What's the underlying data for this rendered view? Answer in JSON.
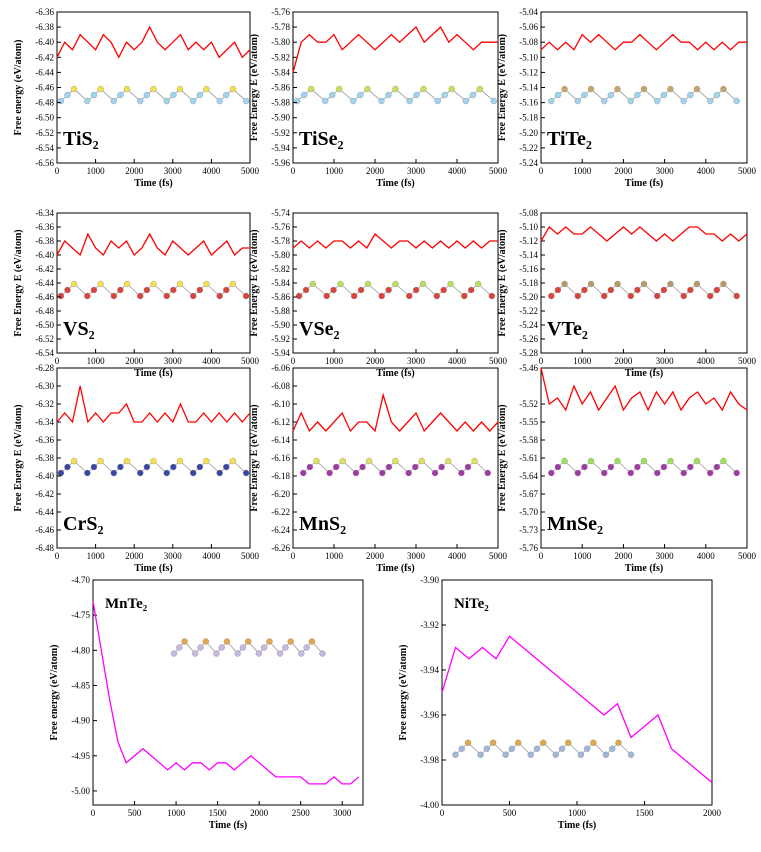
{
  "chart_data": [
    {
      "type": "line",
      "title": "TiS₂",
      "ylabel": "Free energy (eV/atom)",
      "xlabel": "Time (fs)",
      "x": [
        0,
        200,
        400,
        600,
        800,
        1000,
        1200,
        1400,
        1600,
        1800,
        2000,
        2200,
        2400,
        2600,
        2800,
        3000,
        3200,
        3400,
        3600,
        3800,
        4000,
        4200,
        4400,
        4600,
        4800,
        5000
      ],
      "series": [
        {
          "color": "#ff0000",
          "values": [
            -6.42,
            -6.4,
            -6.41,
            -6.39,
            -6.4,
            -6.41,
            -6.39,
            -6.4,
            -6.42,
            -6.4,
            -6.41,
            -6.4,
            -6.38,
            -6.4,
            -6.41,
            -6.4,
            -6.39,
            -6.41,
            -6.4,
            -6.41,
            -6.4,
            -6.42,
            -6.41,
            -6.4,
            -6.42,
            -6.41
          ]
        }
      ],
      "xlim": [
        0,
        5000
      ],
      "xticks": [
        0,
        1000,
        2000,
        3000,
        4000,
        5000
      ],
      "ylim": [
        -6.56,
        -6.36
      ],
      "yticks": [
        -6.36,
        -6.38,
        {
          "value": -6.4,
          "label": "-6.40"
        },
        -6.42,
        -6.44,
        -6.46,
        -6.48,
        {
          "value": -6.5,
          "label": "-6.50"
        },
        -6.52,
        -6.54,
        -6.56
      ]
    },
    {
      "type": "line",
      "title": "TiSe₂",
      "ylabel": "Free Energy E (eV/atom)",
      "xlabel": "Time (fs)",
      "x": [
        0,
        200,
        400,
        600,
        800,
        1000,
        1200,
        1400,
        1600,
        1800,
        2000,
        2200,
        2400,
        2600,
        2800,
        3000,
        3200,
        3400,
        3600,
        3800,
        4000,
        4200,
        4400,
        4600,
        4800,
        5000
      ],
      "series": [
        {
          "color": "#ff0000",
          "values": [
            -5.84,
            -5.8,
            -5.79,
            -5.8,
            -5.8,
            -5.79,
            -5.81,
            -5.8,
            -5.79,
            -5.8,
            -5.81,
            -5.8,
            -5.79,
            -5.8,
            -5.79,
            -5.78,
            -5.8,
            -5.79,
            -5.78,
            -5.8,
            -5.79,
            -5.8,
            -5.81,
            -5.8,
            -5.8,
            -5.8
          ]
        }
      ],
      "xlim": [
        0,
        5000
      ],
      "xticks": [
        0,
        1000,
        2000,
        3000,
        4000,
        5000
      ],
      "ylim": [
        -5.96,
        -5.76
      ],
      "yticks": [
        -5.76,
        -5.78,
        {
          "value": -5.8,
          "label": "-5.80"
        },
        -5.82,
        -5.84,
        -5.86,
        -5.88,
        {
          "value": -5.9,
          "label": "-5.90"
        },
        -5.92,
        -5.94,
        -5.96
      ]
    },
    {
      "type": "line",
      "title": "TiTe₂",
      "ylabel": "Free Energy E (eV/atom)",
      "xlabel": "Time (fs)",
      "x": [
        0,
        200,
        400,
        600,
        800,
        1000,
        1200,
        1400,
        1600,
        1800,
        2000,
        2200,
        2400,
        2600,
        2800,
        3000,
        3200,
        3400,
        3600,
        3800,
        4000,
        4200,
        4400,
        4600,
        4800,
        5000
      ],
      "series": [
        {
          "color": "#ff0000",
          "values": [
            -5.09,
            -5.08,
            -5.09,
            -5.08,
            -5.09,
            -5.07,
            -5.08,
            -5.07,
            -5.08,
            -5.09,
            -5.08,
            -5.08,
            -5.07,
            -5.08,
            -5.09,
            -5.08,
            -5.07,
            -5.08,
            -5.08,
            -5.09,
            -5.08,
            -5.09,
            -5.08,
            -5.09,
            -5.08,
            -5.08
          ]
        }
      ],
      "xlim": [
        0,
        5000
      ],
      "xticks": [
        0,
        1000,
        2000,
        3000,
        4000,
        5000
      ],
      "ylim": [
        -5.24,
        -5.04
      ],
      "yticks": [
        -5.04,
        -5.06,
        -5.08,
        {
          "value": -5.1,
          "label": "-5.10"
        },
        -5.12,
        -5.14,
        -5.16,
        -5.18,
        {
          "value": -5.2,
          "label": "-5.20"
        },
        -5.22,
        -5.24
      ]
    },
    {
      "type": "line",
      "title": "VS₂",
      "ylabel": "Free Energy E (eV/atom)",
      "xlabel": "Time (fs)",
      "x": [
        0,
        200,
        400,
        600,
        800,
        1000,
        1200,
        1400,
        1600,
        1800,
        2000,
        2200,
        2400,
        2600,
        2800,
        3000,
        3200,
        3400,
        3600,
        3800,
        4000,
        4200,
        4400,
        4600,
        4800,
        5000
      ],
      "series": [
        {
          "color": "#ff0000",
          "values": [
            -6.4,
            -6.38,
            -6.39,
            -6.4,
            -6.37,
            -6.39,
            -6.4,
            -6.38,
            -6.39,
            -6.38,
            -6.4,
            -6.39,
            -6.37,
            -6.39,
            -6.4,
            -6.38,
            -6.39,
            -6.4,
            -6.39,
            -6.38,
            -6.4,
            -6.39,
            -6.38,
            -6.4,
            -6.39,
            -6.39
          ]
        }
      ],
      "xlim": [
        0,
        5000
      ],
      "xticks": [
        0,
        1000,
        2000,
        3000,
        4000,
        5000
      ],
      "ylim": [
        -6.54,
        -6.34
      ],
      "yticks": [
        -6.34,
        -6.36,
        -6.38,
        {
          "value": -6.4,
          "label": "-6.40"
        },
        -6.42,
        -6.44,
        -6.46,
        -6.48,
        {
          "value": -6.5,
          "label": "-6.50"
        },
        -6.52,
        -6.54
      ]
    },
    {
      "type": "line",
      "title": "VSe₂",
      "ylabel": "Free Energy E (eV/atom)",
      "xlabel": "Time (fs)",
      "x": [
        0,
        200,
        400,
        600,
        800,
        1000,
        1200,
        1400,
        1600,
        1800,
        2000,
        2200,
        2400,
        2600,
        2800,
        3000,
        3200,
        3400,
        3600,
        3800,
        4000,
        4200,
        4400,
        4600,
        4800,
        5000
      ],
      "series": [
        {
          "color": "#ff0000",
          "values": [
            -5.79,
            -5.78,
            -5.79,
            -5.78,
            -5.79,
            -5.78,
            -5.78,
            -5.79,
            -5.78,
            -5.79,
            -5.77,
            -5.78,
            -5.79,
            -5.78,
            -5.78,
            -5.79,
            -5.78,
            -5.79,
            -5.78,
            -5.79,
            -5.78,
            -5.79,
            -5.78,
            -5.79,
            -5.78,
            -5.78
          ]
        }
      ],
      "xlim": [
        0,
        5000
      ],
      "xticks": [
        0,
        1000,
        2000,
        3000,
        4000,
        5000
      ],
      "ylim": [
        -5.94,
        -5.74
      ],
      "yticks": [
        -5.74,
        -5.76,
        -5.78,
        {
          "value": -5.8,
          "label": "-5.80"
        },
        -5.82,
        -5.84,
        -5.86,
        -5.88,
        {
          "value": -5.9,
          "label": "-5.90"
        },
        -5.92,
        -5.94
      ]
    },
    {
      "type": "line",
      "title": "VTe₂",
      "ylabel": "Free Energy E (eV/atom)",
      "xlabel": "Time (fs)",
      "x": [
        0,
        200,
        400,
        600,
        800,
        1000,
        1200,
        1400,
        1600,
        1800,
        2000,
        2200,
        2400,
        2600,
        2800,
        3000,
        3200,
        3400,
        3600,
        3800,
        4000,
        4200,
        4400,
        4600,
        4800,
        5000
      ],
      "series": [
        {
          "color": "#ff0000",
          "values": [
            -5.12,
            -5.1,
            -5.11,
            -5.1,
            -5.11,
            -5.11,
            -5.1,
            -5.11,
            -5.12,
            -5.11,
            -5.1,
            -5.11,
            -5.1,
            -5.11,
            -5.12,
            -5.11,
            -5.12,
            -5.11,
            -5.1,
            -5.1,
            -5.11,
            -5.11,
            -5.12,
            -5.11,
            -5.12,
            -5.11
          ]
        }
      ],
      "xlim": [
        0,
        5000
      ],
      "xticks": [
        0,
        1000,
        2000,
        3000,
        4000,
        5000
      ],
      "ylim": [
        -5.28,
        -5.08
      ],
      "yticks": [
        -5.08,
        {
          "value": -5.1,
          "label": "-5.10"
        },
        -5.12,
        -5.14,
        -5.16,
        -5.18,
        {
          "value": -5.2,
          "label": "-5.20"
        },
        -5.22,
        -5.24,
        -5.26,
        -5.28
      ]
    },
    {
      "type": "line",
      "title": "CrS₂",
      "ylabel": "Free Energy E (eV/atom)",
      "xlabel": "Time (fs)",
      "x": [
        0,
        200,
        400,
        600,
        800,
        1000,
        1200,
        1400,
        1600,
        1800,
        2000,
        2200,
        2400,
        2600,
        2800,
        3000,
        3200,
        3400,
        3600,
        3800,
        4000,
        4200,
        4400,
        4600,
        4800,
        5000
      ],
      "series": [
        {
          "color": "#ff0000",
          "values": [
            -6.34,
            -6.33,
            -6.34,
            -6.3,
            -6.34,
            -6.33,
            -6.34,
            -6.33,
            -6.33,
            -6.32,
            -6.34,
            -6.34,
            -6.33,
            -6.34,
            -6.33,
            -6.34,
            -6.32,
            -6.34,
            -6.34,
            -6.33,
            -6.34,
            -6.33,
            -6.34,
            -6.33,
            -6.34,
            -6.33
          ]
        }
      ],
      "xlim": [
        0,
        5000
      ],
      "xticks": [
        0,
        1000,
        2000,
        3000,
        4000,
        5000
      ],
      "ylim": [
        -6.48,
        -6.28
      ],
      "yticks": [
        -6.28,
        {
          "value": -6.3,
          "label": "-6.30"
        },
        -6.32,
        -6.34,
        -6.36,
        -6.38,
        {
          "value": -6.4,
          "label": "-6.40"
        },
        -6.42,
        -6.44,
        -6.46,
        -6.48
      ]
    },
    {
      "type": "line",
      "title": "MnS₂",
      "ylabel": "Free Energy E (eV/atom)",
      "xlabel": "Time (fs)",
      "x": [
        0,
        200,
        400,
        600,
        800,
        1000,
        1200,
        1400,
        1600,
        1800,
        2000,
        2200,
        2400,
        2600,
        2800,
        3000,
        3200,
        3400,
        3600,
        3800,
        4000,
        4200,
        4400,
        4600,
        4800,
        5000
      ],
      "series": [
        {
          "color": "#ff0000",
          "values": [
            -6.13,
            -6.11,
            -6.13,
            -6.12,
            -6.13,
            -6.12,
            -6.11,
            -6.13,
            -6.12,
            -6.12,
            -6.13,
            -6.09,
            -6.12,
            -6.13,
            -6.12,
            -6.11,
            -6.13,
            -6.12,
            -6.11,
            -6.12,
            -6.13,
            -6.12,
            -6.13,
            -6.12,
            -6.13,
            -6.12
          ]
        }
      ],
      "xlim": [
        0,
        5000
      ],
      "xticks": [
        0,
        1000,
        2000,
        3000,
        4000,
        5000
      ],
      "ylim": [
        -6.26,
        -6.06
      ],
      "yticks": [
        -6.06,
        -6.08,
        {
          "value": -6.1,
          "label": "-6.10"
        },
        -6.12,
        -6.14,
        -6.16,
        -6.18,
        {
          "value": -6.2,
          "label": "-6.20"
        },
        -6.22,
        -6.24,
        -6.26
      ]
    },
    {
      "type": "line",
      "title": "MnSe₂",
      "ylabel": "Free Energy E (eV/atom)",
      "xlabel": "Time (fs)",
      "x": [
        0,
        200,
        400,
        600,
        800,
        1000,
        1200,
        1400,
        1600,
        1800,
        2000,
        2200,
        2400,
        2600,
        2800,
        3000,
        3200,
        3400,
        3600,
        3800,
        4000,
        4200,
        4400,
        4600,
        4800,
        5000
      ],
      "series": [
        {
          "color": "#ff0000",
          "values": [
            -5.46,
            -5.52,
            -5.51,
            -5.53,
            -5.49,
            -5.52,
            -5.5,
            -5.53,
            -5.51,
            -5.49,
            -5.53,
            -5.51,
            -5.5,
            -5.53,
            -5.5,
            -5.52,
            -5.5,
            -5.53,
            -5.51,
            -5.5,
            -5.52,
            -5.51,
            -5.53,
            -5.5,
            -5.52,
            -5.53
          ]
        }
      ],
      "xlim": [
        0,
        5000
      ],
      "xticks": [
        0,
        1000,
        2000,
        3000,
        4000,
        5000
      ],
      "ylim": [
        -5.76,
        -5.46
      ],
      "yticks": [
        -5.46,
        -5.52,
        -5.55,
        -5.58,
        -5.61,
        -5.64,
        -5.67,
        {
          "value": -5.7,
          "label": "-5.70"
        },
        -5.73,
        -5.76
      ]
    },
    {
      "type": "line",
      "title": "MnTe₂",
      "ylabel": "Free energy (eV/atom)",
      "xlabel": "Time (fs)",
      "x": [
        0,
        100,
        200,
        300,
        400,
        500,
        600,
        700,
        800,
        900,
        1000,
        1100,
        1200,
        1300,
        1400,
        1500,
        1600,
        1700,
        1800,
        1900,
        2000,
        2100,
        2200,
        2300,
        2400,
        2500,
        2600,
        2700,
        2800,
        2900,
        3000,
        3100,
        3200
      ],
      "series": [
        {
          "color": "#ff00ff",
          "values": [
            -4.73,
            -4.8,
            -4.87,
            -4.93,
            -4.96,
            -4.95,
            -4.94,
            -4.95,
            -4.96,
            -4.97,
            -4.96,
            -4.97,
            -4.96,
            -4.96,
            -4.97,
            -4.96,
            -4.96,
            -4.97,
            -4.96,
            -4.95,
            -4.96,
            -4.97,
            -4.98,
            -4.98,
            -4.98,
            -4.98,
            -4.99,
            -4.99,
            -4.99,
            -4.98,
            -4.99,
            -4.99,
            -4.98
          ]
        }
      ],
      "xlim": [
        0,
        3250
      ],
      "xticks": [
        0,
        500,
        1000,
        1500,
        2000,
        2500,
        3000
      ],
      "ylim": [
        -5.02,
        -4.7
      ],
      "yticks": [
        {
          "value": -5,
          "label": "-5.00"
        },
        -4.95,
        {
          "value": -4.9,
          "label": "-4.90"
        },
        -4.85,
        {
          "value": -4.8,
          "label": "-4.80"
        },
        -4.75,
        {
          "value": -4.7,
          "label": "-4.70"
        }
      ]
    },
    {
      "type": "line",
      "title": "NiTe₂",
      "ylabel": "Free energy (eV/atom)",
      "xlabel": "Time (fs)",
      "x": [
        0,
        100,
        200,
        300,
        400,
        500,
        600,
        700,
        800,
        900,
        1000,
        1100,
        1200,
        1300,
        1400,
        1500,
        1600,
        1700,
        1800,
        1900,
        2000
      ],
      "series": [
        {
          "color": "#ff00ff",
          "values": [
            -3.95,
            -3.93,
            -3.935,
            -3.93,
            -3.935,
            -3.925,
            -3.93,
            -3.935,
            -3.94,
            -3.945,
            -3.95,
            -3.955,
            -3.96,
            -3.955,
            -3.97,
            -3.965,
            -3.96,
            -3.975,
            -3.98,
            -3.985,
            -3.99
          ]
        }
      ],
      "xlim": [
        0,
        2000
      ],
      "xticks": [
        0,
        500,
        1000,
        1500,
        2000
      ],
      "ylim": [
        -4,
        -3.9
      ],
      "yticks": [
        {
          "value": -4,
          "label": "-4.00"
        },
        -3.98,
        -3.96,
        -3.94,
        -3.92,
        {
          "value": -3.9,
          "label": "-3.90"
        }
      ]
    }
  ]
}
